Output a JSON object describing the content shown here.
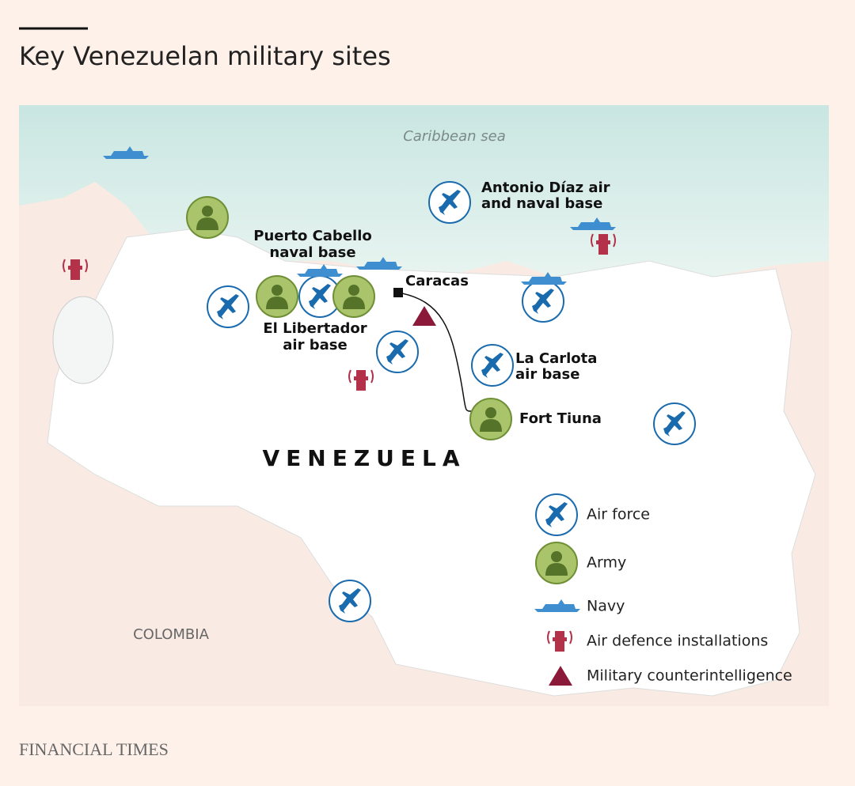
{
  "header": {
    "title": "Key Venezuelan military sites"
  },
  "map": {
    "sea_label": "Caribbean sea",
    "country_label": "VENEZUELA",
    "neighbor_label": "COLOMBIA",
    "city_label": "Caracas",
    "sites": [
      {
        "lines": [
          "Antonio Díaz air",
          "and naval base"
        ]
      },
      {
        "lines": [
          "Puerto Cabello",
          "naval base"
        ]
      },
      {
        "lines": [
          "El Libertador",
          "air base"
        ]
      },
      {
        "lines": [
          "La Carlota",
          "air base"
        ]
      },
      {
        "lines": [
          "Fort Tiuna"
        ]
      }
    ]
  },
  "legend": {
    "items": [
      "Air force",
      "Army",
      "Navy",
      "Air defence installations",
      "Military counterintelligence"
    ]
  },
  "footer": {
    "source": "FINANCIAL TIMES"
  }
}
